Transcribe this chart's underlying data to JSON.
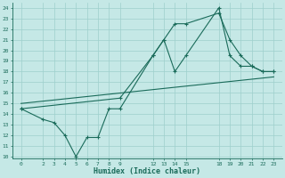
{
  "xlabel": "Humidex (Indice chaleur)",
  "bg_color": "#c5e8e6",
  "grid_color": "#9ecfcc",
  "line_color": "#1a6b5a",
  "x_ticks": [
    0,
    2,
    3,
    4,
    5,
    6,
    7,
    8,
    9,
    12,
    13,
    14,
    15,
    18,
    19,
    20,
    21,
    22,
    23
  ],
  "y_ticks": [
    10,
    11,
    12,
    13,
    14,
    15,
    16,
    17,
    18,
    19,
    20,
    21,
    22,
    23,
    24
  ],
  "ylim": [
    9.8,
    24.5
  ],
  "xlim": [
    -0.8,
    23.8
  ],
  "line1_x": [
    0,
    2,
    3,
    4,
    5,
    6,
    7,
    8,
    9,
    12,
    13,
    14,
    15,
    18,
    19,
    20,
    21,
    22,
    23
  ],
  "line1_y": [
    14.5,
    13.5,
    13.2,
    12.0,
    10.0,
    11.8,
    11.8,
    14.5,
    14.5,
    19.5,
    21.0,
    18.0,
    19.5,
    24.0,
    19.5,
    18.5,
    18.5,
    18.0,
    18.0
  ],
  "line2_x": [
    0,
    9,
    12,
    13,
    14,
    15,
    18,
    19,
    20,
    21,
    22,
    23
  ],
  "line2_y": [
    14.5,
    15.5,
    19.5,
    21.0,
    22.5,
    22.5,
    23.5,
    21.0,
    19.5,
    18.5,
    18.0,
    18.0
  ],
  "line3_x": [
    0,
    23
  ],
  "line3_y": [
    15.0,
    17.5
  ],
  "figsize": [
    3.2,
    2.0
  ],
  "dpi": 100
}
